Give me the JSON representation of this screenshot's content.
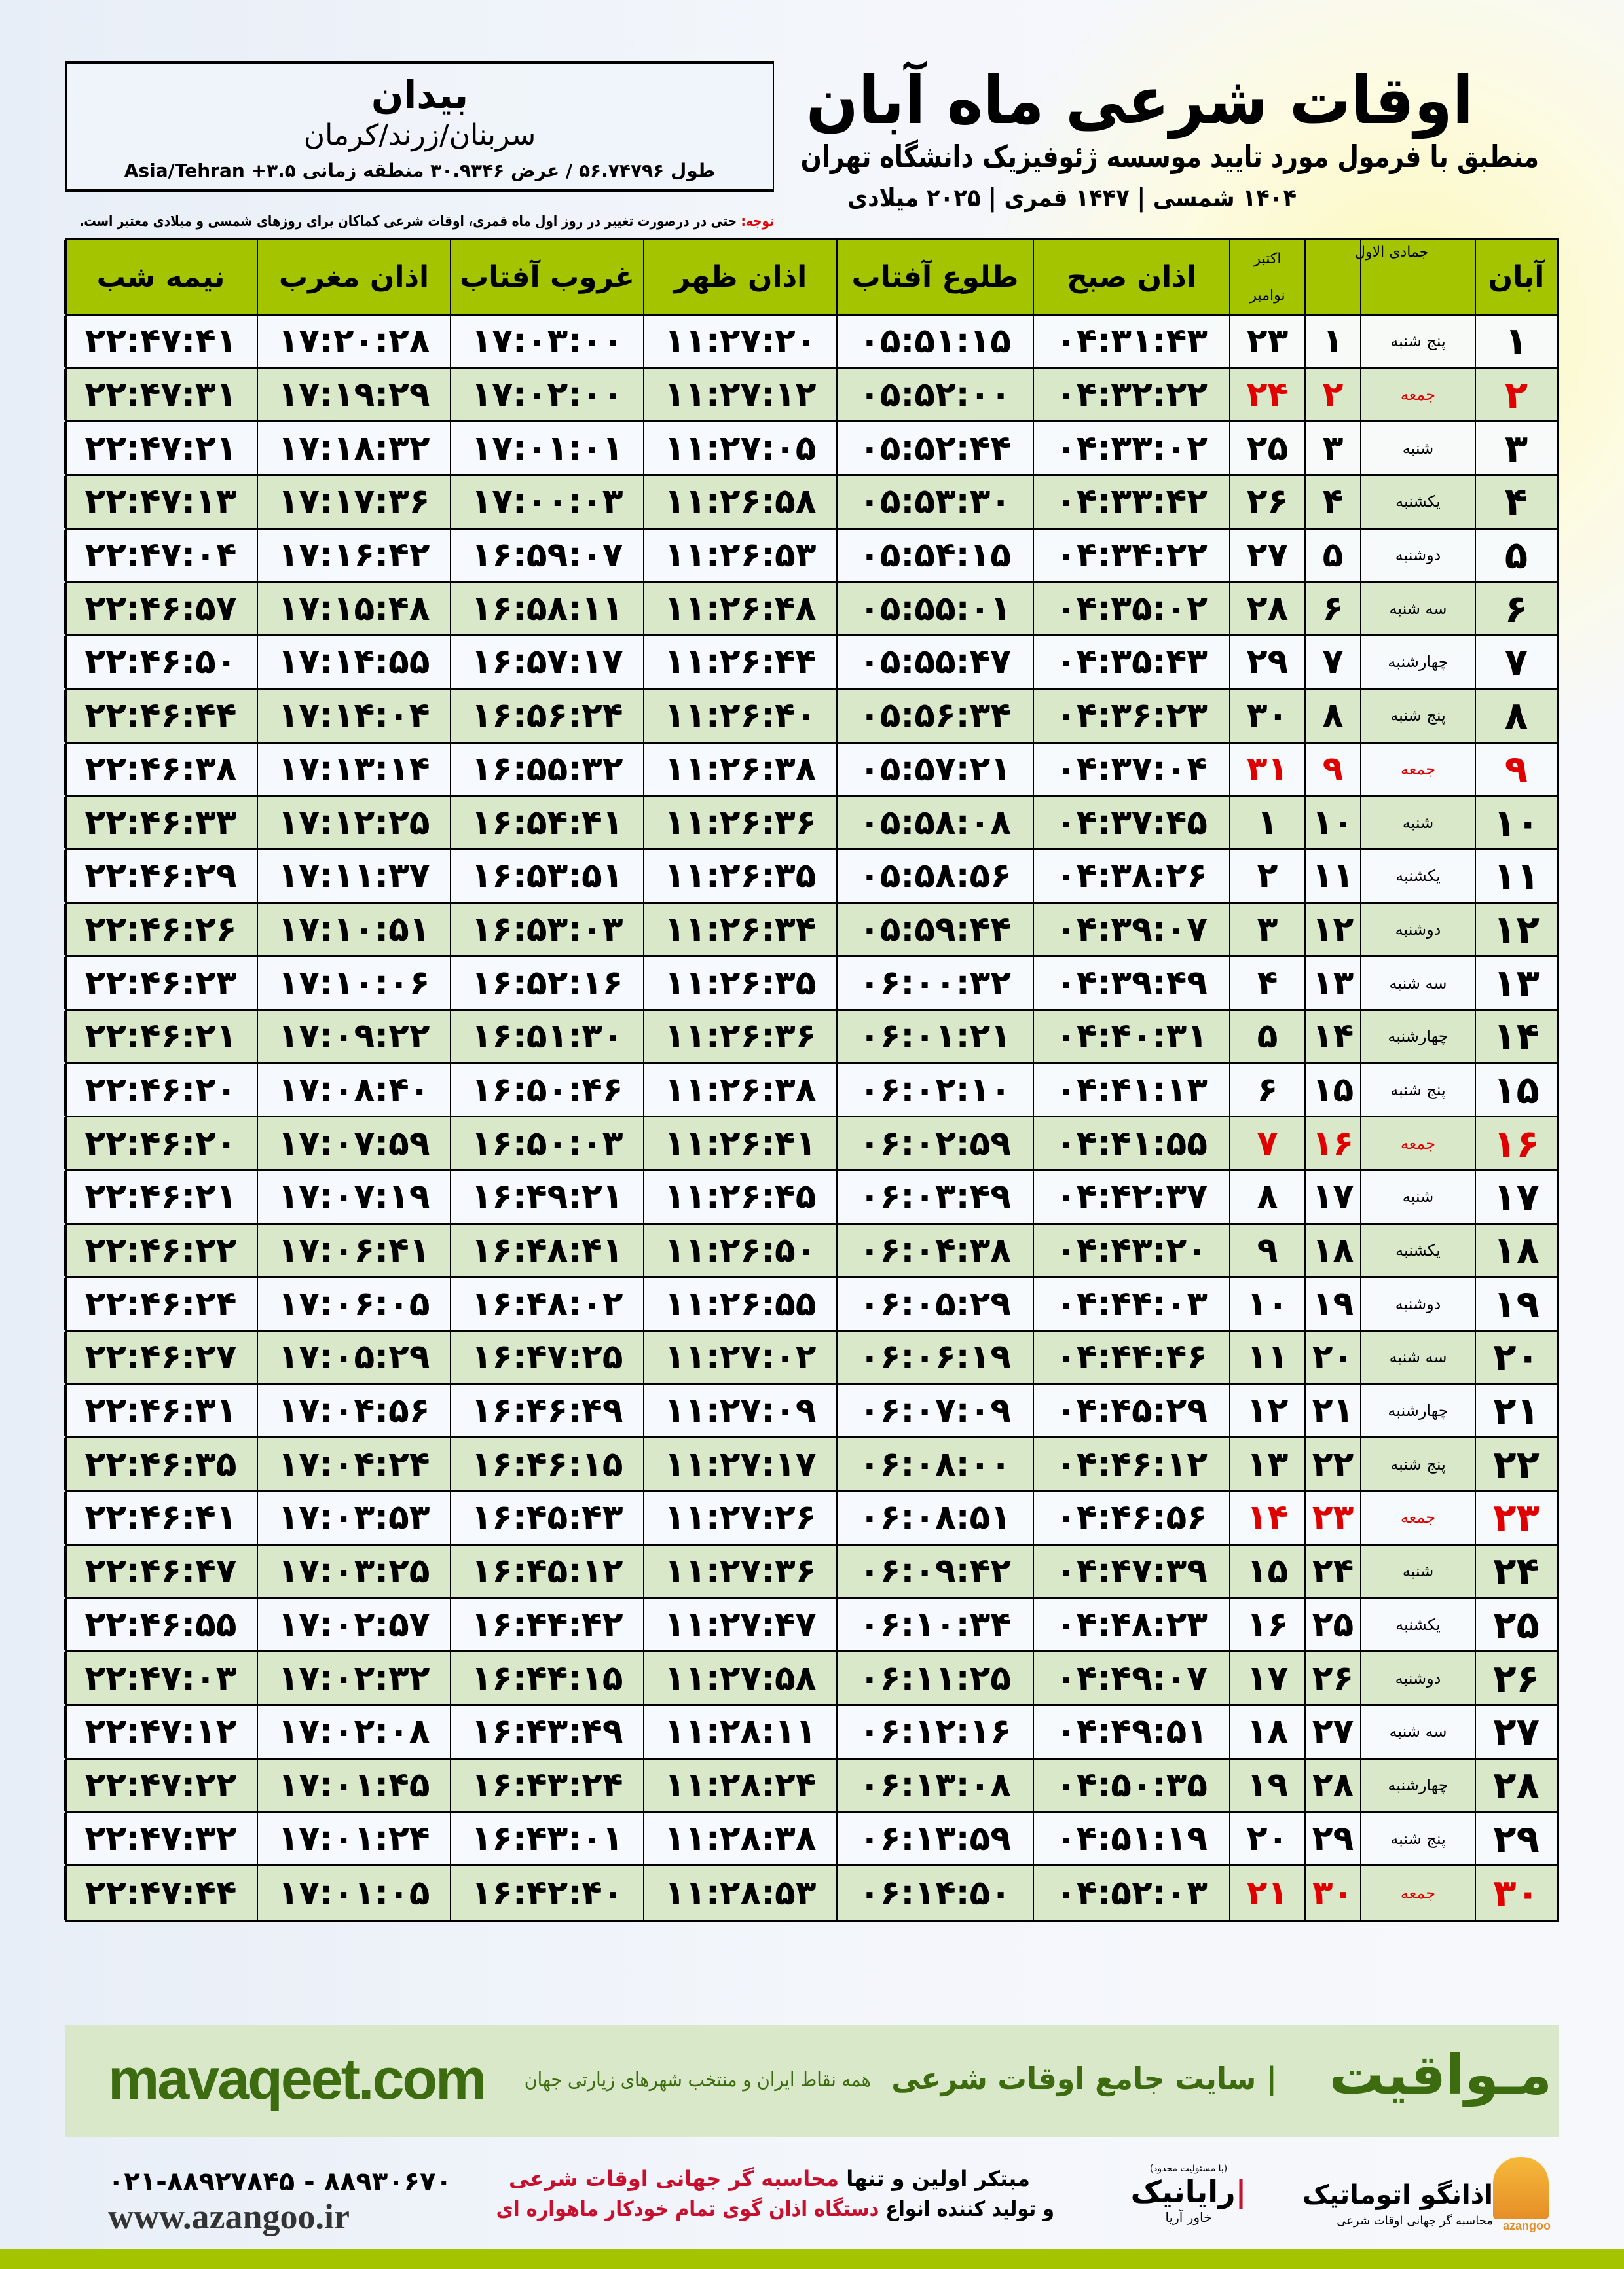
{
  "header": {
    "title": "اوقات شرعی ماه آبان",
    "subtitle": "منطبق با فرمول مورد تایید موسسه ژئوفیزیک دانشگاه تهران",
    "dates": "۱۴۰۴ شمسی | ۱۴۴۷ قمری | ۲۰۲۵ میلادی"
  },
  "location": {
    "city": "بیدان",
    "province": "سربنان/زرند/کرمان",
    "coords": "طول ۵۶.۷۴۷۹۶ / عرض ۳۰.۹۳۴۶ منطقه زمانی ۳.۵+ Asia/Tehran"
  },
  "note": {
    "label": "توجه:",
    "text": " حتی در درصورت تغییر در روز اول ماه قمری، اوقات شرعی کماکان برای روزهای شمسی و میلادی معتبر است."
  },
  "colors": {
    "header_green": "#a5c400",
    "row_green": "#d9e8c9",
    "friday_red": "#e00000",
    "brand_green": "#3d6b0f"
  },
  "table": {
    "headers": {
      "day": "آبان",
      "weekday": "",
      "hijri": "جمادی الاول",
      "greg_top": "اکتبر",
      "greg_bottom": "نوامبر",
      "sobh": "اذان صبح",
      "tolu": "طلوع آفتاب",
      "zohr": "اذان ظهر",
      "ghorub": "غروب آفتاب",
      "maghrib": "اذان مغرب",
      "nime": "نیمه شب"
    },
    "rows": [
      [
        "۱",
        "پنج شنبه",
        "۱",
        "۲۳",
        "۰۴:۳۱:۴۳",
        "۰۵:۵۱:۱۵",
        "۱۱:۲۷:۲۰",
        "۱۷:۰۳:۰۰",
        "۱۷:۲۰:۲۸",
        "۲۲:۴۷:۴۱"
      ],
      [
        "۲",
        "جمعه",
        "۲",
        "۲۴",
        "۰۴:۳۲:۲۲",
        "۰۵:۵۲:۰۰",
        "۱۱:۲۷:۱۲",
        "۱۷:۰۲:۰۰",
        "۱۷:۱۹:۲۹",
        "۲۲:۴۷:۳۱"
      ],
      [
        "۳",
        "شنبه",
        "۳",
        "۲۵",
        "۰۴:۳۳:۰۲",
        "۰۵:۵۲:۴۴",
        "۱۱:۲۷:۰۵",
        "۱۷:۰۱:۰۱",
        "۱۷:۱۸:۳۲",
        "۲۲:۴۷:۲۱"
      ],
      [
        "۴",
        "یکشنبه",
        "۴",
        "۲۶",
        "۰۴:۳۳:۴۲",
        "۰۵:۵۳:۳۰",
        "۱۱:۲۶:۵۸",
        "۱۷:۰۰:۰۳",
        "۱۷:۱۷:۳۶",
        "۲۲:۴۷:۱۳"
      ],
      [
        "۵",
        "دوشنبه",
        "۵",
        "۲۷",
        "۰۴:۳۴:۲۲",
        "۰۵:۵۴:۱۵",
        "۱۱:۲۶:۵۳",
        "۱۶:۵۹:۰۷",
        "۱۷:۱۶:۴۲",
        "۲۲:۴۷:۰۴"
      ],
      [
        "۶",
        "سه شنبه",
        "۶",
        "۲۸",
        "۰۴:۳۵:۰۲",
        "۰۵:۵۵:۰۱",
        "۱۱:۲۶:۴۸",
        "۱۶:۵۸:۱۱",
        "۱۷:۱۵:۴۸",
        "۲۲:۴۶:۵۷"
      ],
      [
        "۷",
        "چهارشنبه",
        "۷",
        "۲۹",
        "۰۴:۳۵:۴۳",
        "۰۵:۵۵:۴۷",
        "۱۱:۲۶:۴۴",
        "۱۶:۵۷:۱۷",
        "۱۷:۱۴:۵۵",
        "۲۲:۴۶:۵۰"
      ],
      [
        "۸",
        "پنج شنبه",
        "۸",
        "۳۰",
        "۰۴:۳۶:۲۳",
        "۰۵:۵۶:۳۴",
        "۱۱:۲۶:۴۰",
        "۱۶:۵۶:۲۴",
        "۱۷:۱۴:۰۴",
        "۲۲:۴۶:۴۴"
      ],
      [
        "۹",
        "جمعه",
        "۹",
        "۳۱",
        "۰۴:۳۷:۰۴",
        "۰۵:۵۷:۲۱",
        "۱۱:۲۶:۳۸",
        "۱۶:۵۵:۳۲",
        "۱۷:۱۳:۱۴",
        "۲۲:۴۶:۳۸"
      ],
      [
        "۱۰",
        "شنبه",
        "۱۰",
        "۱",
        "۰۴:۳۷:۴۵",
        "۰۵:۵۸:۰۸",
        "۱۱:۲۶:۳۶",
        "۱۶:۵۴:۴۱",
        "۱۷:۱۲:۲۵",
        "۲۲:۴۶:۳۳"
      ],
      [
        "۱۱",
        "یکشنبه",
        "۱۱",
        "۲",
        "۰۴:۳۸:۲۶",
        "۰۵:۵۸:۵۶",
        "۱۱:۲۶:۳۵",
        "۱۶:۵۳:۵۱",
        "۱۷:۱۱:۳۷",
        "۲۲:۴۶:۲۹"
      ],
      [
        "۱۲",
        "دوشنبه",
        "۱۲",
        "۳",
        "۰۴:۳۹:۰۷",
        "۰۵:۵۹:۴۴",
        "۱۱:۲۶:۳۴",
        "۱۶:۵۳:۰۳",
        "۱۷:۱۰:۵۱",
        "۲۲:۴۶:۲۶"
      ],
      [
        "۱۳",
        "سه شنبه",
        "۱۳",
        "۴",
        "۰۴:۳۹:۴۹",
        "۰۶:۰۰:۳۲",
        "۱۱:۲۶:۳۵",
        "۱۶:۵۲:۱۶",
        "۱۷:۱۰:۰۶",
        "۲۲:۴۶:۲۳"
      ],
      [
        "۱۴",
        "چهارشنبه",
        "۱۴",
        "۵",
        "۰۴:۴۰:۳۱",
        "۰۶:۰۱:۲۱",
        "۱۱:۲۶:۳۶",
        "۱۶:۵۱:۳۰",
        "۱۷:۰۹:۲۲",
        "۲۲:۴۶:۲۱"
      ],
      [
        "۱۵",
        "پنج شنبه",
        "۱۵",
        "۶",
        "۰۴:۴۱:۱۳",
        "۰۶:۰۲:۱۰",
        "۱۱:۲۶:۳۸",
        "۱۶:۵۰:۴۶",
        "۱۷:۰۸:۴۰",
        "۲۲:۴۶:۲۰"
      ],
      [
        "۱۶",
        "جمعه",
        "۱۶",
        "۷",
        "۰۴:۴۱:۵۵",
        "۰۶:۰۲:۵۹",
        "۱۱:۲۶:۴۱",
        "۱۶:۵۰:۰۳",
        "۱۷:۰۷:۵۹",
        "۲۲:۴۶:۲۰"
      ],
      [
        "۱۷",
        "شنبه",
        "۱۷",
        "۸",
        "۰۴:۴۲:۳۷",
        "۰۶:۰۳:۴۹",
        "۱۱:۲۶:۴۵",
        "۱۶:۴۹:۲۱",
        "۱۷:۰۷:۱۹",
        "۲۲:۴۶:۲۱"
      ],
      [
        "۱۸",
        "یکشنبه",
        "۱۸",
        "۹",
        "۰۴:۴۳:۲۰",
        "۰۶:۰۴:۳۸",
        "۱۱:۲۶:۵۰",
        "۱۶:۴۸:۴۱",
        "۱۷:۰۶:۴۱",
        "۲۲:۴۶:۲۲"
      ],
      [
        "۱۹",
        "دوشنبه",
        "۱۹",
        "۱۰",
        "۰۴:۴۴:۰۳",
        "۰۶:۰۵:۲۹",
        "۱۱:۲۶:۵۵",
        "۱۶:۴۸:۰۲",
        "۱۷:۰۶:۰۵",
        "۲۲:۴۶:۲۴"
      ],
      [
        "۲۰",
        "سه شنبه",
        "۲۰",
        "۱۱",
        "۰۴:۴۴:۴۶",
        "۰۶:۰۶:۱۹",
        "۱۱:۲۷:۰۲",
        "۱۶:۴۷:۲۵",
        "۱۷:۰۵:۲۹",
        "۲۲:۴۶:۲۷"
      ],
      [
        "۲۱",
        "چهارشنبه",
        "۲۱",
        "۱۲",
        "۰۴:۴۵:۲۹",
        "۰۶:۰۷:۰۹",
        "۱۱:۲۷:۰۹",
        "۱۶:۴۶:۴۹",
        "۱۷:۰۴:۵۶",
        "۲۲:۴۶:۳۱"
      ],
      [
        "۲۲",
        "پنج شنبه",
        "۲۲",
        "۱۳",
        "۰۴:۴۶:۱۲",
        "۰۶:۰۸:۰۰",
        "۱۱:۲۷:۱۷",
        "۱۶:۴۶:۱۵",
        "۱۷:۰۴:۲۴",
        "۲۲:۴۶:۳۵"
      ],
      [
        "۲۳",
        "جمعه",
        "۲۳",
        "۱۴",
        "۰۴:۴۶:۵۶",
        "۰۶:۰۸:۵۱",
        "۱۱:۲۷:۲۶",
        "۱۶:۴۵:۴۳",
        "۱۷:۰۳:۵۳",
        "۲۲:۴۶:۴۱"
      ],
      [
        "۲۴",
        "شنبه",
        "۲۴",
        "۱۵",
        "۰۴:۴۷:۳۹",
        "۰۶:۰۹:۴۲",
        "۱۱:۲۷:۳۶",
        "۱۶:۴۵:۱۲",
        "۱۷:۰۳:۲۵",
        "۲۲:۴۶:۴۷"
      ],
      [
        "۲۵",
        "یکشنبه",
        "۲۵",
        "۱۶",
        "۰۴:۴۸:۲۳",
        "۰۶:۱۰:۳۴",
        "۱۱:۲۷:۴۷",
        "۱۶:۴۴:۴۲",
        "۱۷:۰۲:۵۷",
        "۲۲:۴۶:۵۵"
      ],
      [
        "۲۶",
        "دوشنبه",
        "۲۶",
        "۱۷",
        "۰۴:۴۹:۰۷",
        "۰۶:۱۱:۲۵",
        "۱۱:۲۷:۵۸",
        "۱۶:۴۴:۱۵",
        "۱۷:۰۲:۳۲",
        "۲۲:۴۷:۰۳"
      ],
      [
        "۲۷",
        "سه شنبه",
        "۲۷",
        "۱۸",
        "۰۴:۴۹:۵۱",
        "۰۶:۱۲:۱۶",
        "۱۱:۲۸:۱۱",
        "۱۶:۴۳:۴۹",
        "۱۷:۰۲:۰۸",
        "۲۲:۴۷:۱۲"
      ],
      [
        "۲۸",
        "چهارشنبه",
        "۲۸",
        "۱۹",
        "۰۴:۵۰:۳۵",
        "۰۶:۱۳:۰۸",
        "۱۱:۲۸:۲۴",
        "۱۶:۴۳:۲۴",
        "۱۷:۰۱:۴۵",
        "۲۲:۴۷:۲۲"
      ],
      [
        "۲۹",
        "پنج شنبه",
        "۲۹",
        "۲۰",
        "۰۴:۵۱:۱۹",
        "۰۶:۱۳:۵۹",
        "۱۱:۲۸:۳۸",
        "۱۶:۴۳:۰۱",
        "۱۷:۰۱:۲۴",
        "۲۲:۴۷:۳۲"
      ],
      [
        "۳۰",
        "جمعه",
        "۳۰",
        "۲۱",
        "۰۴:۵۲:۰۳",
        "۰۶:۱۴:۵۰",
        "۱۱:۲۸:۵۳",
        "۱۶:۴۲:۴۰",
        "۱۷:۰۱:۰۵",
        "۲۲:۴۷:۴۴"
      ]
    ]
  },
  "footer": {
    "site": "mavaqeet.com",
    "tagline": "همه نقاط ایران و منتخب شهرهای زیارتی جهان",
    "description": "| سایت جامع اوقات شرعی",
    "brand": "مـواقیت",
    "phone": "۰۲۱-۸۸۹۲۷۸۴۵ - ۸۸۹۳۰۶۷۰",
    "web": "www.azangoo.ir",
    "promo1_a": "مبتکر اولین و تنها ",
    "promo1_b": "محاسبه گر جهانی اوقات شرعی",
    "promo2_a": "و تولید کننده انواع ",
    "promo2_b": "دستگاه اذان گوی تمام خودکار ماهواره ای",
    "rayanik_small": "(با مسئولیت محدود)",
    "rayanik": "رایانیک",
    "rayanik_sub": "خاور آریا",
    "azangoo": "اذانگو اتوماتیک",
    "azangoo_sub": "محاسبه گر جهانی اوقات شرعی",
    "azangoo_en": "azangoo"
  }
}
